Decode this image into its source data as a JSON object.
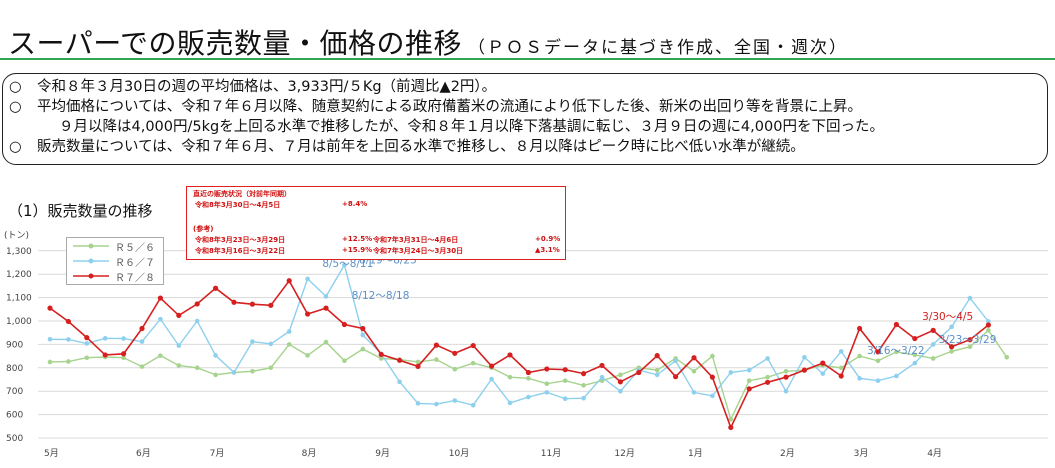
{
  "title": "スーパーでの販売数量・価格の推移",
  "subtitle": "（ＰＯＳデータに基づき作成、全国・週次）",
  "summary": {
    "bullet": "○",
    "line1": "令和８年３月30日の週の平均価格は、3,933円/５Kg（前週比▲2円）。",
    "line2": "平均価格については、令和７年６月以降、随意契約による政府備蓄米の流通により低下した後、新米の出回り等を背景に上昇。",
    "line3": "９月以降は4,000円/5kgを上回る水準で推移したが、令和８年１月以降下落基調に転じ、３月９日の週に4,000円を下回った。",
    "line4": "販売数量については、令和７年６月、７月は前年を上回る水準で推移し、８月以降はピーク時に比べ低い水準が継続。"
  },
  "section_title": "（1）販売数量の推移",
  "sales_box": {
    "heading": "直近の販売状況（対前年同期）",
    "r1_period": "令和8年3月30日～4月5日",
    "r1_value": "+8.4%",
    "ref_label": "(参考)",
    "r2_period": "令和8年3月23日～3月29日",
    "r2_value": "+12.5%",
    "r2_comp": "令和7年3月31日～4月6日",
    "r2_comp_value": "+0.9%",
    "r3_period": "令和8年3月16日～3月22日",
    "r3_value": "+15.9%",
    "r3_comp": "令和7年3月24日～3月30日",
    "r3_comp_value": "▲3.1%"
  },
  "colors": {
    "r5": "#a6d38d",
    "r6": "#8dd0ee",
    "r7": "#d62020",
    "accent": "#2fa84f"
  },
  "chart_data": {
    "type": "line",
    "ylabel": "(トン)",
    "ylim": [
      500,
      1300
    ],
    "yticks": [
      "500",
      "600",
      "700",
      "800",
      "900",
      "1,000",
      "1,100",
      "1,200",
      "1,300"
    ],
    "month_labels": [
      "5月",
      "6月",
      "7月",
      "8月",
      "9月",
      "10月",
      "11月",
      "12月",
      "1月",
      "2月",
      "3月",
      "4月"
    ],
    "month_week_index": [
      0,
      5,
      9,
      14,
      18,
      22,
      27,
      31,
      35,
      40,
      44,
      48
    ],
    "legend": "top-left",
    "grid": true,
    "series": [
      {
        "name": "Ｒ５／６",
        "color": "#a6d38d",
        "values": [
          825,
          827,
          843,
          846,
          843,
          805,
          852,
          810,
          800,
          770,
          780,
          785,
          800,
          900,
          853,
          910,
          830,
          880,
          840,
          835,
          825,
          835,
          794,
          820,
          800,
          760,
          755,
          732,
          745,
          725,
          745,
          770,
          800,
          790,
          840,
          785,
          850,
          580,
          745,
          760,
          785,
          790,
          810,
          800,
          850,
          830,
          868,
          855,
          840,
          870,
          890,
          960,
          845
        ]
      },
      {
        "name": "Ｒ６／７",
        "color": "#8dd0ee",
        "values": [
          922,
          921,
          904,
          926,
          925,
          912,
          1008,
          895,
          1000,
          853,
          780,
          912,
          902,
          955,
          1180,
          1105,
          1239,
          940,
          860,
          740,
          648,
          645,
          660,
          640,
          752,
          650,
          675,
          695,
          668,
          670,
          760,
          700,
          790,
          770,
          830,
          695,
          680,
          780,
          790,
          840,
          700,
          845,
          775,
          870,
          755,
          745,
          765,
          820,
          900,
          975,
          1098,
          998
        ]
      },
      {
        "name": "Ｒ７／８",
        "color": "#d62020",
        "values": [
          1055,
          998,
          929,
          855,
          860,
          968,
          1098,
          1024,
          1073,
          1140,
          1080,
          1072,
          1067,
          1172,
          1030,
          1055,
          985,
          968,
          857,
          832,
          806,
          897,
          862,
          895,
          807,
          855,
          780,
          795,
          792,
          775,
          810,
          740,
          780,
          852,
          762,
          843,
          760,
          545,
          710,
          738,
          760,
          790,
          820,
          765,
          968,
          868,
          985,
          925,
          960,
          890,
          920,
          983
        ]
      }
    ],
    "annotations": [
      {
        "text": "8/5～8/11",
        "week": 14.8,
        "value": 1230,
        "color": "#5c8fc7"
      },
      {
        "text": "8/19～8/25",
        "week": 16.8,
        "value": 1245,
        "color": "#5c8fc7"
      },
      {
        "text": "8/12～8/18",
        "week": 16.4,
        "value": 1095,
        "color": "#5c8fc7"
      },
      {
        "text": "3/30～4/5",
        "week": 47.4,
        "value": 1005,
        "color": "#d62020"
      },
      {
        "text": "3/23～3/29",
        "week": 48.3,
        "value": 905,
        "color": "#5c8fc7"
      },
      {
        "text": "3/16～3/22",
        "week": 44.4,
        "value": 860,
        "color": "#5c8fc7"
      }
    ]
  }
}
